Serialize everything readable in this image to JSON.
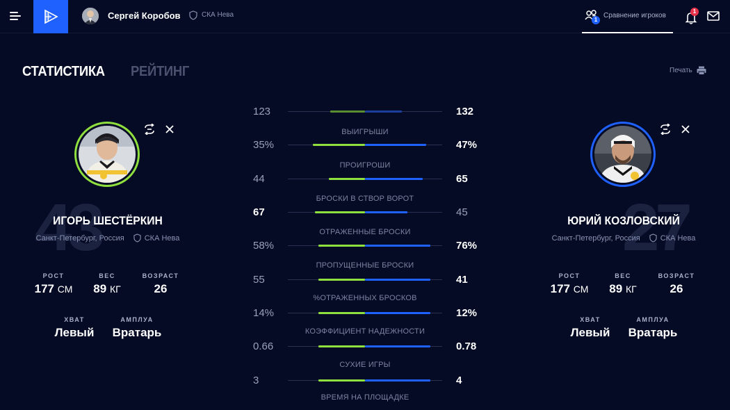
{
  "header": {
    "user_name": "Сергей Коробов",
    "user_team": "СКА Нева",
    "compare_label": "Сравнение игроков",
    "compare_count": "1",
    "notifications_count": "1"
  },
  "tabs": {
    "stats": "СТАТИСТИКА",
    "rating": "РЕЙТИНГ"
  },
  "print_label": "Печать",
  "stat_labels": {
    "height": "РОСТ",
    "weight": "ВЕС",
    "age": "ВОЗРАСТ",
    "grip": "ХВАТ",
    "position": "АМПЛУА"
  },
  "players": {
    "left": {
      "number": "43",
      "name": "ИГОРЬ ШЕСТЁРКИН",
      "city": "Санкт-Петербург, Россия",
      "team": "СКА Нева",
      "height": "177",
      "height_unit": "СМ",
      "weight": "89",
      "weight_unit": "КГ",
      "age": "26",
      "grip": "Левый",
      "position": "Вратарь",
      "accent": "#8fe03e"
    },
    "right": {
      "number": "27",
      "name": "ЮРИЙ КОЗЛОВСКИЙ",
      "city": "Санкт-Петербург, Россия",
      "team": "СКА Нева",
      "height": "177",
      "height_unit": "СМ",
      "weight": "89",
      "weight_unit": "КГ",
      "age": "26",
      "grip": "Левый",
      "position": "Вратарь",
      "accent": "#1f61ff"
    }
  },
  "comparison": {
    "rows": [
      {
        "left": "123",
        "right": "132",
        "left_share": 0.45,
        "right_share": 0.48,
        "label": "ВЫИГРЫШИ"
      },
      {
        "left": "35%",
        "right": "47%",
        "left_share": 0.68,
        "right_share": 0.79,
        "label": "ПРОИГРОШИ"
      },
      {
        "left": "44",
        "right": "65",
        "left_share": 0.47,
        "right_share": 0.75,
        "label": "БРОСКИ В СТВОР ВОРОТ"
      },
      {
        "left": "67",
        "right": "45",
        "left_share": 0.65,
        "right_share": 0.55,
        "label": "ОТРАЖЕННЫЕ БРОСКИ"
      },
      {
        "left": "58%",
        "right": "76%",
        "left_share": 0.6,
        "right_share": 0.85,
        "label": "ПРОПУЩЕННЫЕ БРОСКИ"
      },
      {
        "left": "55",
        "right": "41",
        "left_share": 0.6,
        "right_share": 0.85,
        "label": "%ОТРАЖЕННЫХ БРОСКОВ"
      },
      {
        "left": "14%",
        "right": "12%",
        "left_share": 0.6,
        "right_share": 0.85,
        "label": "КОЭФФИЦИЕНТ НАДЕЖНОСТИ"
      },
      {
        "left": "0.66",
        "right": "0.78",
        "left_share": 0.6,
        "right_share": 0.85,
        "label": "СУХИЕ ИГРЫ"
      },
      {
        "left": "3",
        "right": "4",
        "left_share": 0.6,
        "right_share": 0.85,
        "label": "ВРЕМЯ НА ПЛОЩАДКЕ"
      }
    ]
  }
}
